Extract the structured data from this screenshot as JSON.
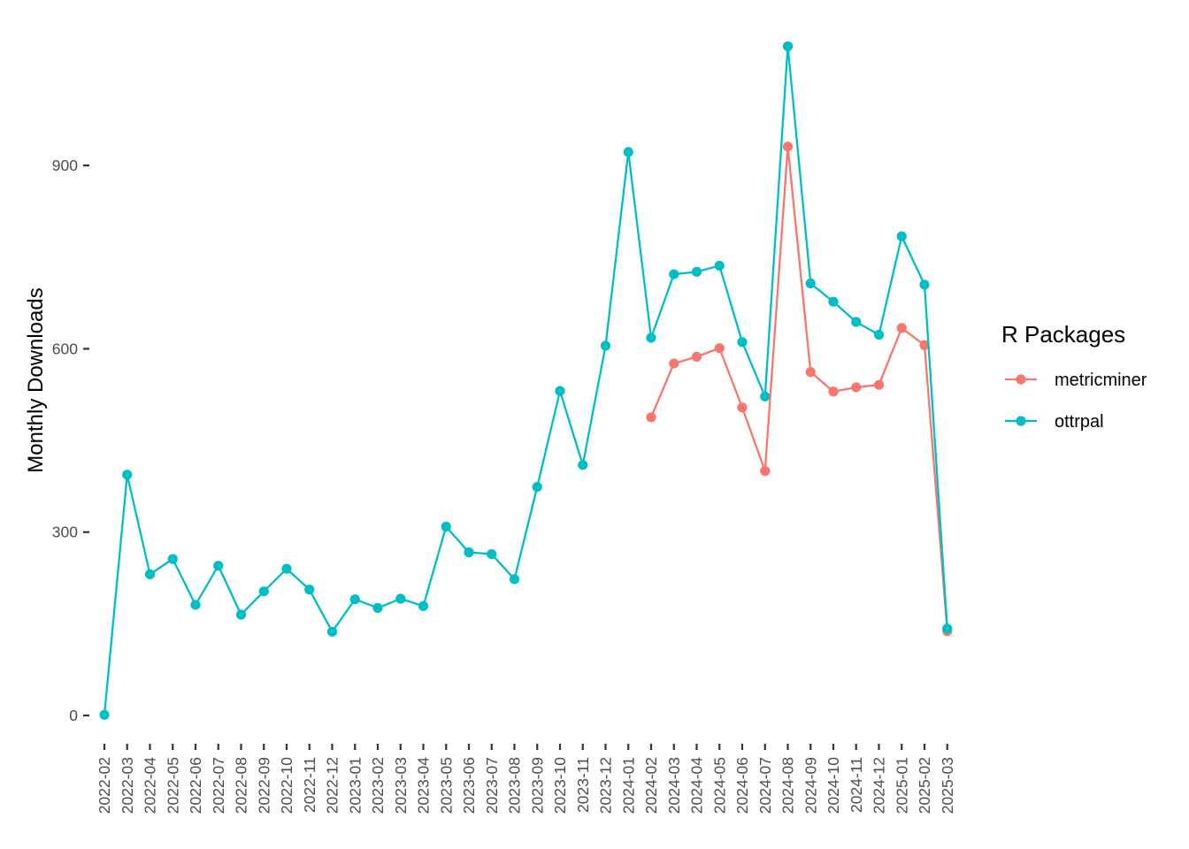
{
  "chart_data": {
    "type": "line",
    "title": "",
    "xlabel": "",
    "ylabel": "Monthly Downloads",
    "ylim": [
      -45,
      1135
    ],
    "yticks": [
      0,
      300,
      600,
      900
    ],
    "ytick_labels": [
      "0",
      "300",
      "600",
      "900"
    ],
    "grid": false,
    "legend": {
      "title": "R Packages",
      "position": "right"
    },
    "categories": [
      "2022-02",
      "2022-03",
      "2022-04",
      "2022-05",
      "2022-06",
      "2022-07",
      "2022-08",
      "2022-09",
      "2022-10",
      "2022-11",
      "2022-12",
      "2023-01",
      "2023-02",
      "2023-03",
      "2023-04",
      "2023-05",
      "2023-06",
      "2023-07",
      "2023-08",
      "2023-09",
      "2023-10",
      "2023-11",
      "2023-12",
      "2024-01",
      "2024-02",
      "2024-03",
      "2024-04",
      "2024-05",
      "2024-06",
      "2024-07",
      "2024-08",
      "2024-09",
      "2024-10",
      "2024-11",
      "2024-12",
      "2025-01",
      "2025-02",
      "2025-03"
    ],
    "series": [
      {
        "name": "metricminer",
        "color": "#F8766D",
        "values": [
          null,
          null,
          null,
          null,
          null,
          null,
          null,
          null,
          null,
          null,
          null,
          null,
          null,
          null,
          null,
          null,
          null,
          null,
          null,
          null,
          null,
          null,
          null,
          null,
          488,
          576,
          587,
          601,
          504,
          400,
          931,
          562,
          530,
          537,
          541,
          634,
          606,
          138
        ]
      },
      {
        "name": "ottrpal",
        "color": "#00BFC4",
        "values": [
          1,
          394,
          231,
          256,
          181,
          245,
          165,
          203,
          240,
          206,
          137,
          190,
          176,
          191,
          179,
          309,
          267,
          264,
          223,
          374,
          531,
          410,
          605,
          922,
          618,
          722,
          726,
          736,
          611,
          522,
          1095,
          707,
          677,
          644,
          623,
          784,
          705,
          142
        ]
      }
    ]
  }
}
